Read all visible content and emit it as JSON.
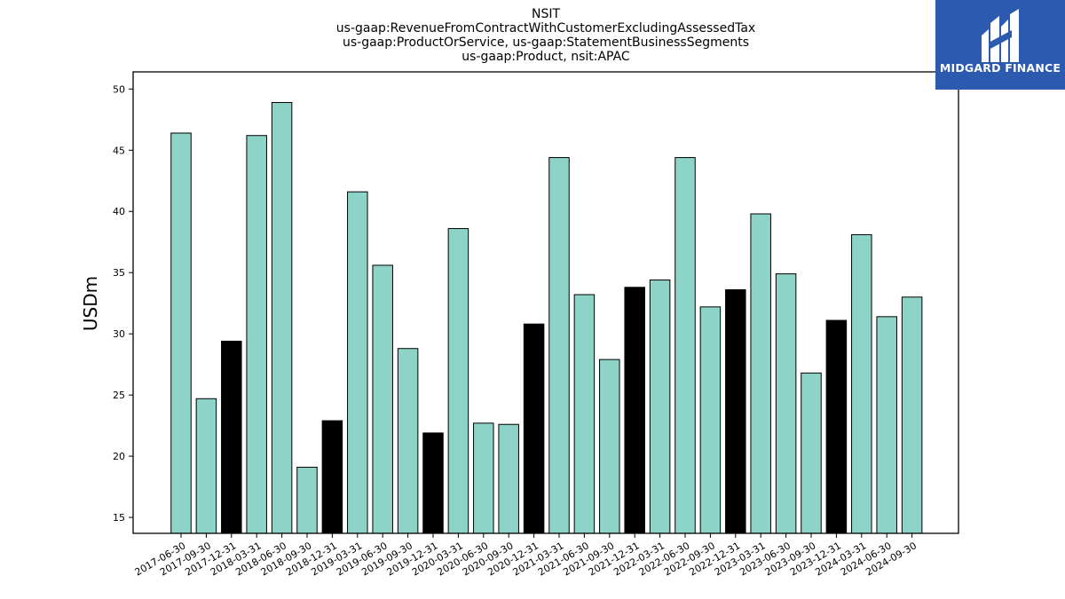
{
  "title_lines": [
    "NSIT",
    "us-gaap:RevenueFromContractWithCustomerExcludingAssessedTax",
    "us-gaap:ProductOrService, us-gaap:StatementBusinessSegments",
    "us-gaap:Product, nsit:APAC"
  ],
  "logo": {
    "text": "MIDGARD FINANCE",
    "color": "#2b5aae"
  },
  "chart_data": {
    "type": "bar",
    "title": "NSIT\nus-gaap:RevenueFromContractWithCustomerExcludingAssessedTax\nus-gaap:ProductOrService, us-gaap:StatementBusinessSegments\nus-gaap:Product, nsit:APAC",
    "xlabel": "",
    "ylabel": "USDm",
    "ylim": [
      13.7,
      51.4
    ],
    "yticks": [
      15,
      20,
      25,
      30,
      35,
      40,
      45,
      50
    ],
    "grid": false,
    "colors": {
      "quarter": "#8dd3c7",
      "year_end": "#000000"
    },
    "categories": [
      "2017-06-30",
      "2017-09-30",
      "2017-12-31",
      "2018-03-31",
      "2018-06-30",
      "2018-09-30",
      "2018-12-31",
      "2019-03-31",
      "2019-06-30",
      "2019-09-30",
      "2019-12-31",
      "2020-03-31",
      "2020-06-30",
      "2020-09-30",
      "2020-12-31",
      "2021-03-31",
      "2021-06-30",
      "2021-09-30",
      "2021-12-31",
      "2022-03-31",
      "2022-06-30",
      "2022-09-30",
      "2022-12-31",
      "2023-03-31",
      "2023-06-30",
      "2023-09-30",
      "2023-12-31",
      "2024-03-31",
      "2024-06-30",
      "2024-09-30"
    ],
    "values": [
      46.4,
      24.7,
      29.4,
      46.2,
      48.9,
      19.1,
      22.9,
      41.6,
      35.6,
      28.8,
      21.9,
      38.6,
      22.7,
      22.6,
      30.8,
      44.4,
      33.2,
      27.9,
      33.8,
      34.4,
      44.4,
      32.2,
      33.6,
      39.8,
      34.9,
      26.8,
      31.1,
      38.1,
      31.4,
      33.0
    ]
  }
}
